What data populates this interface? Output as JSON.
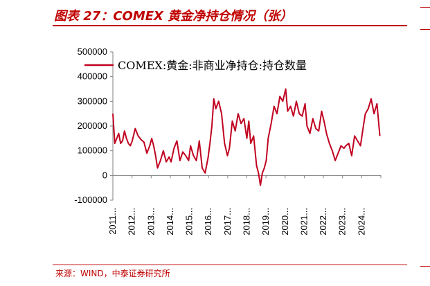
{
  "figure": {
    "title": "图表 27：COMEX 黄金净持仓情况（张）",
    "source": "来源：WIND，中泰证券研究所"
  },
  "colors": {
    "accent": "#c00000",
    "series": "#c00020",
    "axis": "#7f7f7f"
  },
  "chart_data": {
    "type": "line",
    "title": "",
    "xlabel": "",
    "ylabel": "",
    "ylim": [
      -100000,
      500000
    ],
    "yticks": [
      -100000,
      0,
      100000,
      200000,
      300000,
      400000,
      500000
    ],
    "ytick_labels": [
      "-100000",
      "0",
      "100000",
      "200000",
      "300000",
      "400000",
      "500000"
    ],
    "xticks": [
      "2011...",
      "2012...",
      "2013...",
      "2014...",
      "2015...",
      "2016...",
      "2017...",
      "2018...",
      "2019...",
      "2020...",
      "2021...",
      "2022...",
      "2023...",
      "2024..."
    ],
    "xlim": [
      2011.0,
      2024.8
    ],
    "grid": false,
    "legend_position": "top",
    "series": [
      {
        "name": "COMEX:黄金:非商业净持仓:持仓数量",
        "x": [
          2011.0,
          2011.1,
          2011.2,
          2011.3,
          2011.4,
          2011.5,
          2011.6,
          2011.7,
          2011.8,
          2011.9,
          2012.0,
          2012.15,
          2012.3,
          2012.45,
          2012.6,
          2012.75,
          2012.9,
          2013.0,
          2013.1,
          2013.2,
          2013.3,
          2013.45,
          2013.6,
          2013.75,
          2013.9,
          2014.0,
          2014.15,
          2014.3,
          2014.45,
          2014.6,
          2014.75,
          2014.9,
          2015.0,
          2015.15,
          2015.3,
          2015.45,
          2015.6,
          2015.75,
          2015.9,
          2016.0,
          2016.1,
          2016.2,
          2016.3,
          2016.45,
          2016.6,
          2016.75,
          2016.9,
          2017.0,
          2017.15,
          2017.3,
          2017.45,
          2017.6,
          2017.75,
          2017.9,
          2018.0,
          2018.1,
          2018.25,
          2018.4,
          2018.5,
          2018.6,
          2018.7,
          2018.8,
          2018.9,
          2019.0,
          2019.15,
          2019.3,
          2019.45,
          2019.6,
          2019.75,
          2019.9,
          2020.0,
          2020.15,
          2020.3,
          2020.45,
          2020.6,
          2020.75,
          2020.9,
          2021.0,
          2021.15,
          2021.3,
          2021.45,
          2021.6,
          2021.75,
          2021.9,
          2022.0,
          2022.15,
          2022.3,
          2022.45,
          2022.6,
          2022.75,
          2022.9,
          2023.0,
          2023.15,
          2023.3,
          2023.45,
          2023.6,
          2023.75,
          2023.9,
          2024.0,
          2024.15,
          2024.3,
          2024.45,
          2024.6,
          2024.75
        ],
        "values": [
          250000,
          130000,
          150000,
          170000,
          130000,
          140000,
          180000,
          150000,
          130000,
          120000,
          140000,
          190000,
          160000,
          145000,
          135000,
          90000,
          120000,
          150000,
          120000,
          80000,
          30000,
          60000,
          100000,
          55000,
          75000,
          55000,
          110000,
          140000,
          60000,
          95000,
          80000,
          60000,
          120000,
          80000,
          60000,
          140000,
          30000,
          10000,
          70000,
          130000,
          200000,
          310000,
          270000,
          300000,
          250000,
          130000,
          80000,
          110000,
          220000,
          180000,
          250000,
          210000,
          230000,
          150000,
          220000,
          130000,
          160000,
          40000,
          10000,
          -40000,
          10000,
          30000,
          60000,
          150000,
          210000,
          280000,
          250000,
          320000,
          300000,
          350000,
          260000,
          280000,
          240000,
          300000,
          250000,
          240000,
          290000,
          200000,
          170000,
          230000,
          190000,
          180000,
          260000,
          210000,
          170000,
          130000,
          100000,
          60000,
          90000,
          120000,
          110000,
          120000,
          130000,
          80000,
          160000,
          140000,
          120000,
          200000,
          250000,
          270000,
          310000,
          250000,
          290000,
          160000
        ]
      }
    ]
  }
}
